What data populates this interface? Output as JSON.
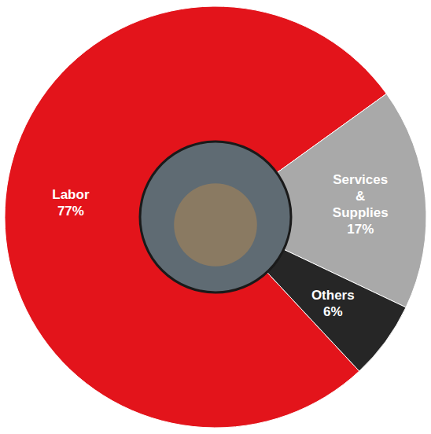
{
  "chart_data": {
    "type": "pie",
    "categories": [
      "Labor",
      "Services & Supplies",
      "Others"
    ],
    "values": [
      77,
      17,
      6
    ],
    "value_labels": [
      "77%",
      "17%",
      "6%"
    ],
    "colors": [
      "#e3141b",
      "#a9a9a9",
      "#262626"
    ],
    "data_labels": true
  }
}
